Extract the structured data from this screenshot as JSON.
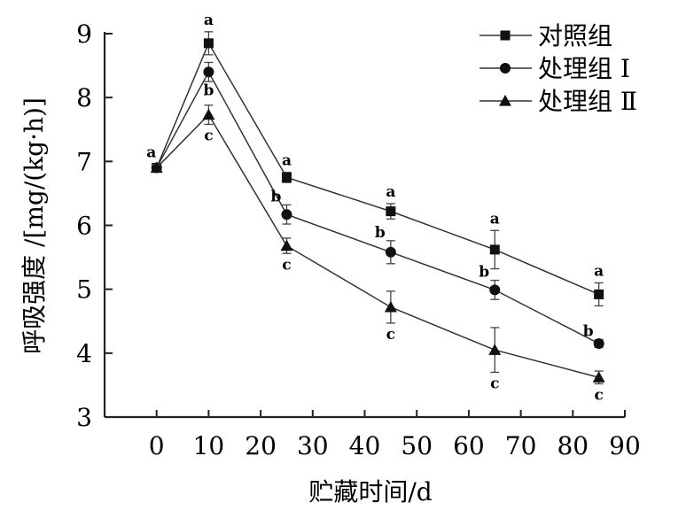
{
  "chart_data": {
    "type": "line",
    "title": "",
    "xlabel": "贮藏时间/d",
    "ylabel": "呼吸强度 /[mg/(kg·h)]",
    "xlim": [
      -10,
      90
    ],
    "ylim": [
      3,
      9
    ],
    "xticks": [
      0,
      10,
      20,
      30,
      40,
      50,
      60,
      70,
      80,
      90
    ],
    "yticks": [
      3,
      4,
      5,
      6,
      7,
      8,
      9
    ],
    "grid": false,
    "legend_position": "top-right",
    "x": [
      0,
      10,
      25,
      45,
      65,
      85
    ],
    "series": [
      {
        "name": "对照组",
        "marker": "square",
        "values": [
          6.9,
          8.85,
          6.75,
          6.22,
          5.62,
          4.92
        ],
        "errors": [
          0.05,
          0.18,
          0.08,
          0.12,
          0.3,
          0.18
        ],
        "labels": [
          "a",
          "a",
          "a",
          "a",
          "a",
          "a"
        ]
      },
      {
        "name": "处理组 Ⅰ",
        "marker": "circle",
        "values": [
          6.9,
          8.4,
          6.17,
          5.58,
          4.99,
          4.15
        ],
        "errors": [
          0.05,
          0.15,
          0.15,
          0.18,
          0.15,
          0.06
        ],
        "labels": [
          "",
          "b",
          "b",
          "b",
          "b",
          "b"
        ]
      },
      {
        "name": "处理组 Ⅱ",
        "marker": "triangle",
        "values": [
          6.9,
          7.73,
          5.68,
          4.72,
          4.05,
          3.62
        ],
        "errors": [
          0.05,
          0.15,
          0.12,
          0.25,
          0.35,
          0.1
        ],
        "labels": [
          "",
          "c",
          "c",
          "c",
          "c",
          "c"
        ]
      }
    ]
  }
}
